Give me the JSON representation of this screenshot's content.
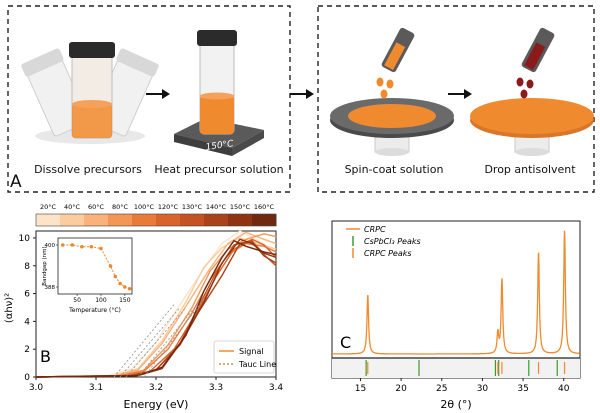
{
  "panel_a": {
    "letter": "A",
    "steps": [
      {
        "label": "Dissolve precursors"
      },
      {
        "label": "Heat precursor solution"
      },
      {
        "label": "Spin-coat solution"
      },
      {
        "label": "Drop antisolvent"
      }
    ],
    "hotplate_temp": "150°C",
    "colors": {
      "solution": "#f08a2e",
      "antisolvent": "#8b1a1a",
      "cap": "#2b2b2b",
      "hotplate": "#5a5a5a"
    }
  },
  "panel_b": {
    "letter": "B",
    "colorbar_labels": [
      "20°C",
      "40°C",
      "60°C",
      "80°C",
      "100°C",
      "120°C",
      "130°C",
      "140°C",
      "150°C",
      "160°C"
    ],
    "colorbar_colors": [
      "#fde3c8",
      "#fbcc9f",
      "#f8b27a",
      "#f39656",
      "#ea7a38",
      "#d9632a",
      "#c55222",
      "#aa421b",
      "#8e3414",
      "#70280f"
    ],
    "legend": {
      "signal": "Signal",
      "tauc": "Tauc Line"
    },
    "inset": {
      "xlabel": "Temperature (°C)",
      "ylabel": "Bandgap (nm)"
    }
  },
  "panel_c": {
    "letter": "C",
    "legend": {
      "crpc": "CRPC",
      "cspbcl3": "CsPbCl₃ Peaks",
      "crpc_peaks": "CRPC Peaks"
    }
  },
  "chart_data": [
    {
      "type": "line",
      "panel": "B",
      "xlabel": "Energy (eV)",
      "ylabel": "(αhν)²",
      "xlim": [
        3.0,
        3.4
      ],
      "ylim": [
        0,
        10.5
      ],
      "x_ticks": [
        "3.0",
        "3.1",
        "3.2",
        "3.3",
        "3.4"
      ],
      "y_ticks": [
        "0",
        "2",
        "4",
        "6",
        "8",
        "10"
      ],
      "series": [
        {
          "color": "#fde3c8",
          "x": [
            3.0,
            3.12,
            3.16,
            3.2,
            3.24,
            3.28,
            3.31,
            3.34,
            3.37,
            3.4
          ],
          "y": [
            0,
            0.1,
            0.6,
            2.5,
            5.2,
            7.8,
            9.6,
            10.5,
            9.8,
            9.0
          ]
        },
        {
          "color": "#fbcc9f",
          "x": [
            3.0,
            3.13,
            3.17,
            3.21,
            3.25,
            3.28,
            3.31,
            3.34,
            3.37,
            3.4
          ],
          "y": [
            0,
            0.1,
            0.6,
            2.6,
            5.4,
            7.9,
            9.3,
            10.0,
            9.6,
            9.2
          ]
        },
        {
          "color": "#f8b27a",
          "x": [
            3.0,
            3.13,
            3.17,
            3.21,
            3.25,
            3.29,
            3.32,
            3.35,
            3.38,
            3.4
          ],
          "y": [
            0,
            0.1,
            0.5,
            2.4,
            5.1,
            7.8,
            9.6,
            10.4,
            9.9,
            9.6
          ]
        },
        {
          "color": "#f39656",
          "x": [
            3.0,
            3.14,
            3.18,
            3.22,
            3.26,
            3.29,
            3.32,
            3.35,
            3.38,
            3.4
          ],
          "y": [
            0,
            0.1,
            0.5,
            2.3,
            5.0,
            7.6,
            9.2,
            9.9,
            10.3,
            10.1
          ]
        },
        {
          "color": "#ea7a38",
          "x": [
            3.0,
            3.14,
            3.18,
            3.22,
            3.26,
            3.29,
            3.32,
            3.35,
            3.38,
            3.4
          ],
          "y": [
            0,
            0.1,
            0.4,
            2.0,
            4.6,
            7.0,
            8.8,
            9.6,
            9.4,
            9.0
          ]
        },
        {
          "color": "#d9632a",
          "x": [
            3.0,
            3.15,
            3.19,
            3.23,
            3.27,
            3.3,
            3.33,
            3.36,
            3.38,
            3.4
          ],
          "y": [
            0,
            0.1,
            0.4,
            2.0,
            4.8,
            7.2,
            9.2,
            9.9,
            9.5,
            8.6
          ]
        },
        {
          "color": "#c55222",
          "x": [
            3.0,
            3.16,
            3.2,
            3.24,
            3.27,
            3.3,
            3.33,
            3.36,
            3.38,
            3.4
          ],
          "y": [
            0,
            0.1,
            0.5,
            2.4,
            5.0,
            7.5,
            9.5,
            9.8,
            8.8,
            8.0
          ]
        },
        {
          "color": "#aa421b",
          "x": [
            3.0,
            3.16,
            3.2,
            3.24,
            3.27,
            3.31,
            3.34,
            3.36,
            3.38,
            3.4
          ],
          "y": [
            0,
            0.1,
            0.5,
            2.3,
            4.6,
            7.3,
            9.6,
            9.7,
            8.7,
            8.2
          ]
        },
        {
          "color": "#8e3414",
          "x": [
            3.0,
            3.17,
            3.21,
            3.24,
            3.28,
            3.31,
            3.34,
            3.36,
            3.38,
            3.4
          ],
          "y": [
            0,
            0.1,
            0.6,
            2.4,
            5.4,
            8.2,
            9.9,
            9.6,
            8.9,
            8.6
          ]
        },
        {
          "color": "#70280f",
          "x": [
            3.0,
            3.17,
            3.21,
            3.25,
            3.28,
            3.31,
            3.33,
            3.35,
            3.38,
            3.4
          ],
          "y": [
            0,
            0.1,
            0.7,
            3.0,
            6.2,
            8.6,
            9.8,
            9.4,
            9.0,
            8.8
          ]
        }
      ],
      "tauc_lines": [
        {
          "x": [
            3.13,
            3.23
          ],
          "y": [
            0,
            5.2
          ]
        },
        {
          "x": [
            3.14,
            3.24
          ],
          "y": [
            0,
            5.0
          ]
        },
        {
          "x": [
            3.15,
            3.25
          ],
          "y": [
            0,
            5.0
          ]
        },
        {
          "x": [
            3.17,
            3.27
          ],
          "y": [
            0,
            5.3
          ]
        },
        {
          "x": [
            3.18,
            3.28
          ],
          "y": [
            0,
            5.6
          ]
        }
      ],
      "inset": {
        "type": "line",
        "x": [
          20,
          40,
          60,
          80,
          100,
          120,
          130,
          140,
          150,
          160
        ],
        "y": [
          400,
          400,
          399.5,
          399.5,
          399,
          394,
          391,
          389,
          388,
          387.5
        ],
        "xlim": [
          10,
          165
        ],
        "ylim": [
          386,
          402
        ],
        "x_ticks": [
          "50",
          "100",
          "150"
        ],
        "y_ticks": [
          "388",
          "400"
        ]
      }
    },
    {
      "type": "line",
      "panel": "C",
      "xlabel": "2θ (°)",
      "xlim": [
        11.5,
        42
      ],
      "x_ticks": [
        "15",
        "20",
        "25",
        "30",
        "35",
        "40"
      ],
      "ylim": [
        0,
        1
      ],
      "peaks": [
        {
          "x": 15.9,
          "h": 0.46
        },
        {
          "x": 31.9,
          "h": 0.16
        },
        {
          "x": 32.4,
          "h": 0.58
        },
        {
          "x": 36.9,
          "h": 0.79
        },
        {
          "x": 40.1,
          "h": 0.96
        }
      ],
      "cspbcl3_peaks": [
        15.7,
        22.2,
        31.6,
        32.0,
        35.7,
        39.2
      ],
      "crpc_peaks": [
        15.9,
        31.9,
        32.4,
        36.9,
        40.1
      ]
    }
  ]
}
